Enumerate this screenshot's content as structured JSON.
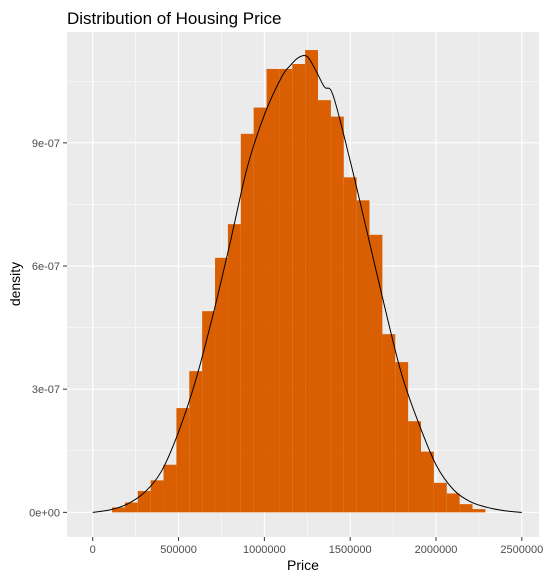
{
  "chart_data": {
    "type": "bar",
    "subtype": "histogram-with-density-curve",
    "title": "Distribution of Housing Price",
    "xlabel": "Price",
    "ylabel": "density",
    "xlim": [
      -150000,
      2600000
    ],
    "ylim": [
      -6e-08,
      1.17e-06
    ],
    "x_ticks": [
      0,
      500000,
      1000000,
      1500000,
      2000000,
      2500000
    ],
    "x_tick_labels": [
      "0",
      "500000",
      "1000000",
      "1500000",
      "2000000",
      "2500000"
    ],
    "y_ticks": [
      0,
      3e-07,
      6e-07,
      9e-07
    ],
    "y_tick_labels": [
      "0e+00",
      "3e-07",
      "6e-07",
      "9e-07"
    ],
    "bin_width": 75000,
    "bin_centers": [
      0,
      75000,
      150000,
      225000,
      300000,
      375000,
      450000,
      525000,
      600000,
      675000,
      750000,
      825000,
      900000,
      975000,
      1050000,
      1125000,
      1200000,
      1275000,
      1350000,
      1425000,
      1500000,
      1575000,
      1650000,
      1725000,
      1800000,
      1875000,
      1950000,
      2025000,
      2100000,
      2175000,
      2250000,
      2325000,
      2400000,
      2475000
    ],
    "densities": [
      0.0,
      0.0,
      1.2e-08,
      2.4e-08,
      5.2e-08,
      7.8e-08,
      1.16e-07,
      2.54e-07,
      3.44e-07,
      4.9e-07,
      6.2e-07,
      7.02e-07,
      9.22e-07,
      9.86e-07,
      1.08e-06,
      1.08e-06,
      1.092e-06,
      1.126e-06,
      1.004e-06,
      9.64e-07,
      8.16e-07,
      7.6e-07,
      6.76e-07,
      4.34e-07,
      3.66e-07,
      2.22e-07,
      1.48e-07,
      7.2e-08,
      4.6e-08,
      2e-08,
      8e-09,
      0.0,
      0.0,
      0.0
    ],
    "density_curve": {
      "x": [
        0,
        100000,
        200000,
        300000,
        400000,
        500000,
        600000,
        700000,
        800000,
        900000,
        1000000,
        1100000,
        1150000,
        1200000,
        1250000,
        1300000,
        1350000,
        1400000,
        1500000,
        1600000,
        1700000,
        1800000,
        1900000,
        2000000,
        2100000,
        2200000,
        2300000,
        2400000,
        2500000
      ],
      "y": [
        0.0,
        6e-09,
        2e-08,
        4.8e-08,
        1e-07,
        1.96e-07,
        3.22e-07,
        4.8e-07,
        6.56e-07,
        8.4e-07,
        9.68e-07,
        1.06e-06,
        1.088e-06,
        1.108e-06,
        1.11e-06,
        1.076e-06,
        1.036e-06,
        1.016e-06,
        8.56e-07,
        6.8e-07,
        5.02e-07,
        3.36e-07,
        2.16e-07,
        1.16e-07,
        5.6e-08,
        2.6e-08,
        1.2e-08,
        4e-09,
        0.0
      ]
    },
    "grid": true,
    "legend": "none",
    "colors": {
      "bar_fill": "#D95F02",
      "panel_background": "#EBEBEB",
      "grid": "#FFFFFF",
      "curve": "#000000",
      "tick_label": "#4D4D4D"
    }
  }
}
